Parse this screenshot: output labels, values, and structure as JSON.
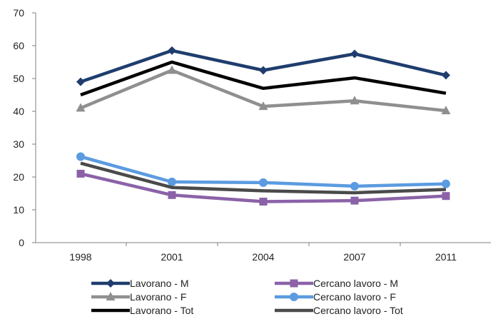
{
  "chart_data": {
    "type": "line",
    "categories": [
      "1998",
      "2001",
      "2004",
      "2007",
      "2011"
    ],
    "ylim": [
      0,
      70
    ],
    "yticks": [
      0,
      10,
      20,
      30,
      40,
      50,
      60,
      70
    ],
    "grid": false,
    "legend_position": "bottom",
    "series": [
      {
        "name": "Lavorano - M",
        "values": [
          49,
          58.5,
          52.5,
          57.5,
          51
        ],
        "color": "#1f3d6e",
        "marker": "diamond"
      },
      {
        "name": "Cercano lavoro - M",
        "values": [
          21,
          14.5,
          12.5,
          12.8,
          14.2
        ],
        "color": "#8b62a8",
        "marker": "square"
      },
      {
        "name": "Lavorano - F",
        "values": [
          41,
          52.5,
          41.5,
          43.2,
          40.2
        ],
        "color": "#8f8f8f",
        "marker": "triangle"
      },
      {
        "name": "Cercano lavoro - F",
        "values": [
          26.2,
          18.5,
          18.3,
          17.2,
          17.9
        ],
        "color": "#5b9be0",
        "marker": "circle"
      },
      {
        "name": "Lavorano - Tot",
        "values": [
          45,
          55,
          47,
          50.2,
          45.5
        ],
        "color": "#000000",
        "marker": "none"
      },
      {
        "name": "Cercano lavoro - Tot",
        "values": [
          24.2,
          16.8,
          15.8,
          15.2,
          16.2
        ],
        "color": "#4a4a4a",
        "marker": "none"
      }
    ]
  }
}
